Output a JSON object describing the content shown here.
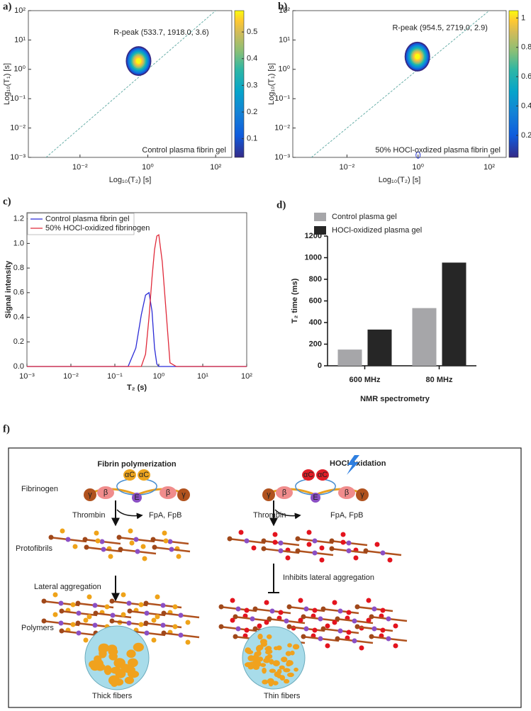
{
  "chart_data": [
    {
      "type": "contour",
      "panel_label": "a)",
      "annotation": "R-peak (533.7, 1918.0, 3.6)",
      "note": "Control plasma fibrin gel",
      "x_label": "Log₁₀(T₂) [s]",
      "y_label": "Log₁₀(T₁) [s]",
      "xscale": "log",
      "yscale": "log",
      "xlim": [
        0.0003,
        300
      ],
      "ylim": [
        0.001,
        100
      ],
      "xticks": [
        {
          "value": 0.01,
          "label": "10⁻²"
        },
        {
          "value": 1,
          "label": "10⁰"
        },
        {
          "value": 100,
          "label": "10²"
        }
      ],
      "yticks": [
        {
          "value": 0.001,
          "label": "10⁻³"
        },
        {
          "value": 0.01,
          "label": "10⁻²"
        },
        {
          "value": 0.1,
          "label": "10⁻¹"
        },
        {
          "value": 1,
          "label": "10⁰"
        },
        {
          "value": 10,
          "label": "10¹"
        },
        {
          "value": 100,
          "label": "10²"
        }
      ],
      "peak": {
        "x": 0.5337,
        "y": 1.918
      },
      "colorbar": {
        "lim": [
          0.03,
          0.58
        ],
        "ticks": [
          0.1,
          0.2,
          0.3,
          0.4,
          0.5
        ]
      }
    },
    {
      "type": "contour",
      "panel_label": "b)",
      "annotation": "R-peak (954.5, 2719.0, 2.9)",
      "note": "50% HOCl-oxdized plasma fibrin gel",
      "x_label": "Log₁₀(T₂) [s]",
      "y_label": "Log₁₀(T₁) [s]",
      "xscale": "log",
      "yscale": "log",
      "xlim": [
        0.0003,
        300
      ],
      "ylim": [
        0.001,
        100
      ],
      "xticks": [
        {
          "value": 0.01,
          "label": "10⁻²"
        },
        {
          "value": 1,
          "label": "10⁰"
        },
        {
          "value": 100,
          "label": "10²"
        }
      ],
      "yticks": [
        {
          "value": 0.001,
          "label": "10⁻³"
        },
        {
          "value": 0.01,
          "label": "10⁻²"
        },
        {
          "value": 0.1,
          "label": "10⁻¹"
        },
        {
          "value": 1,
          "label": "10⁰"
        },
        {
          "value": 10,
          "label": "10¹"
        },
        {
          "value": 100,
          "label": "10²"
        }
      ],
      "peak": {
        "x": 0.9545,
        "y": 2.719
      },
      "minor_peak": {
        "x": 1,
        "y": 0.0012
      },
      "colorbar": {
        "lim": [
          0.05,
          1.05
        ],
        "ticks": [
          0.2,
          0.4,
          0.6,
          0.8,
          1
        ]
      }
    },
    {
      "type": "line",
      "panel_label": "c)",
      "x_label": "T₂ (s)",
      "y_label": "Signal intensity",
      "xscale": "log",
      "xlim": [
        0.001,
        100
      ],
      "ylim": [
        0,
        1.25
      ],
      "xticks": [
        {
          "value": 0.001,
          "label": "10⁻³"
        },
        {
          "value": 0.01,
          "label": "10⁻²"
        },
        {
          "value": 0.1,
          "label": "10⁻¹"
        },
        {
          "value": 1,
          "label": "10⁰"
        },
        {
          "value": 10,
          "label": "10¹"
        },
        {
          "value": 100,
          "label": "10²"
        }
      ],
      "yticks": [
        {
          "value": 0,
          "label": "0.0"
        },
        0.2,
        0.4,
        0.6,
        0.8,
        {
          "value": 1,
          "label": "1.0"
        },
        1.2
      ],
      "legend": "top-left",
      "x": [
        0.001,
        0.01,
        0.1,
        0.2,
        0.3,
        0.4,
        0.5,
        0.6,
        0.7,
        0.8,
        0.9,
        1.0,
        1.2,
        1.5,
        1.8,
        2.5,
        10,
        100
      ],
      "series": [
        {
          "name": "Control plasma fibrin gel",
          "color": "#2b2bd6",
          "values": [
            0,
            0,
            0,
            0,
            0.15,
            0.42,
            0.58,
            0.6,
            0.45,
            0.15,
            0.02,
            0,
            0,
            0,
            0,
            0,
            0,
            0
          ]
        },
        {
          "name": "50% HOCl-oxidized fibrinogen",
          "color": "#e02a3a",
          "values": [
            0,
            0,
            0,
            0,
            0,
            0,
            0.1,
            0.4,
            0.72,
            0.95,
            1.06,
            1.07,
            0.85,
            0.4,
            0.03,
            0,
            0,
            0
          ]
        }
      ]
    },
    {
      "type": "bar",
      "panel_label": "d)",
      "x_label": "NMR spectrometry",
      "y_label": "T₂ time (ms)",
      "categories": [
        "600 MHz",
        "80 MHz"
      ],
      "ylim": [
        0,
        1200
      ],
      "yticks": [
        0,
        200,
        400,
        600,
        800,
        1000,
        1200
      ],
      "legend": "top",
      "series": [
        {
          "name": "Control plasma gel",
          "color": "#a6a6a9",
          "values": [
            150,
            533.7
          ]
        },
        {
          "name": "HOCl-oxidized plasma gel",
          "color": "#262626",
          "values": [
            335,
            954.5
          ]
        }
      ]
    }
  ],
  "diagram": {
    "panel_label": "f)",
    "left_title": "Fibrin polymerization",
    "right_title": "HOCl oxidation",
    "fibrinogen": "Fibrinogen",
    "thrombin_left": "Thrombin",
    "products_left": "FpA, FpB",
    "thrombin_right": "Thrombin",
    "products_right": "FpA, FpB",
    "protofibrils": "Protofibrils",
    "lateral": "Lateral aggregation",
    "inhibits": "Inhibits lateral aggregation",
    "polymers": "Polymers",
    "thick": "Thick fibers",
    "thin": "Thin fibers",
    "molecule_labels": [
      "αC",
      "αC",
      "γ",
      "β",
      "E",
      "β",
      "γ"
    ]
  }
}
